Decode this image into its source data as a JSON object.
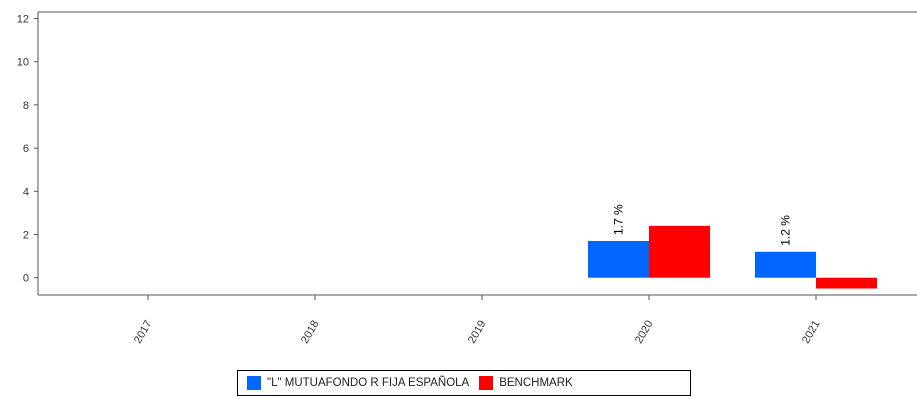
{
  "chart_data": {
    "type": "bar",
    "categories": [
      "2017",
      "2018",
      "2019",
      "2020",
      "2021"
    ],
    "series": [
      {
        "name": "\"L\" MUTUAFONDO R FIJA ESPAÑOLA",
        "color": "#0066ff",
        "values": [
          null,
          null,
          null,
          1.7,
          1.2
        ],
        "labels": [
          null,
          null,
          null,
          "1.7 %",
          "1.2 %"
        ]
      },
      {
        "name": "BENCHMARK",
        "color": "#ff0000",
        "values": [
          null,
          null,
          null,
          2.4,
          -0.5
        ]
      }
    ],
    "y_ticks": [
      "0",
      "2",
      "4",
      "6",
      "8",
      "10",
      "12"
    ],
    "ylim": [
      -0.8,
      12.3
    ],
    "grid": false,
    "legend_position": "bottom"
  }
}
